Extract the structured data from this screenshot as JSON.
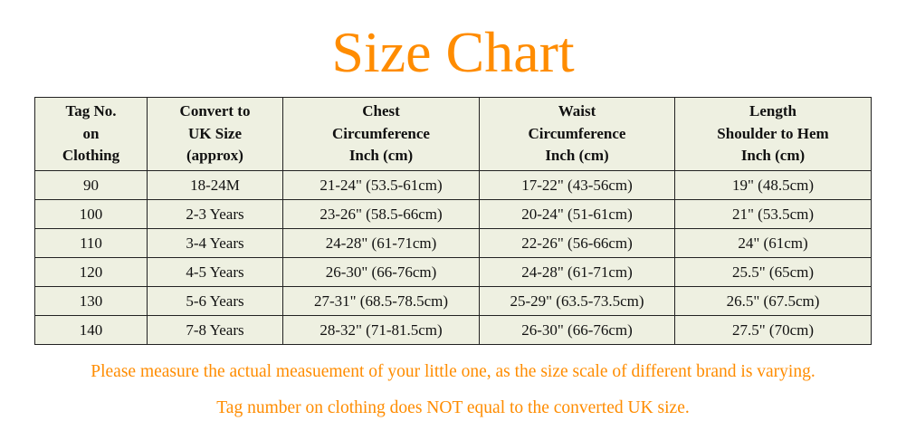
{
  "title": "Size Chart",
  "colors": {
    "accent": "#ff8c00",
    "cell_bg": "#eef0e1"
  },
  "table": {
    "headers": [
      [
        "Tag No.",
        "on",
        "Clothing"
      ],
      [
        "Convert to",
        "UK Size",
        "(approx)"
      ],
      [
        "Chest",
        "Circumference",
        "Inch (cm)"
      ],
      [
        "Waist",
        "Circumference",
        "Inch (cm)"
      ],
      [
        "Length",
        "Shoulder to Hem",
        "Inch (cm)"
      ]
    ],
    "rows": [
      [
        "90",
        "18-24M",
        "21-24\" (53.5-61cm)",
        "17-22\" (43-56cm)",
        "19\" (48.5cm)"
      ],
      [
        "100",
        "2-3 Years",
        "23-26\" (58.5-66cm)",
        "20-24\" (51-61cm)",
        "21\" (53.5cm)"
      ],
      [
        "110",
        "3-4 Years",
        "24-28\" (61-71cm)",
        "22-26\" (56-66cm)",
        "24\" (61cm)"
      ],
      [
        "120",
        "4-5 Years",
        "26-30\" (66-76cm)",
        "24-28\" (61-71cm)",
        "25.5\" (65cm)"
      ],
      [
        "130",
        "5-6 Years",
        "27-31\" (68.5-78.5cm)",
        "25-29\" (63.5-73.5cm)",
        "26.5\" (67.5cm)"
      ],
      [
        "140",
        "7-8 Years",
        "28-32\" (71-81.5cm)",
        "26-30\" (66-76cm)",
        "27.5\" (70cm)"
      ]
    ]
  },
  "notes": [
    "Please measure the actual measuement of your little one, as the size scale of different brand is varying.",
    "Tag number on clothing does NOT equal to the converted UK size."
  ]
}
